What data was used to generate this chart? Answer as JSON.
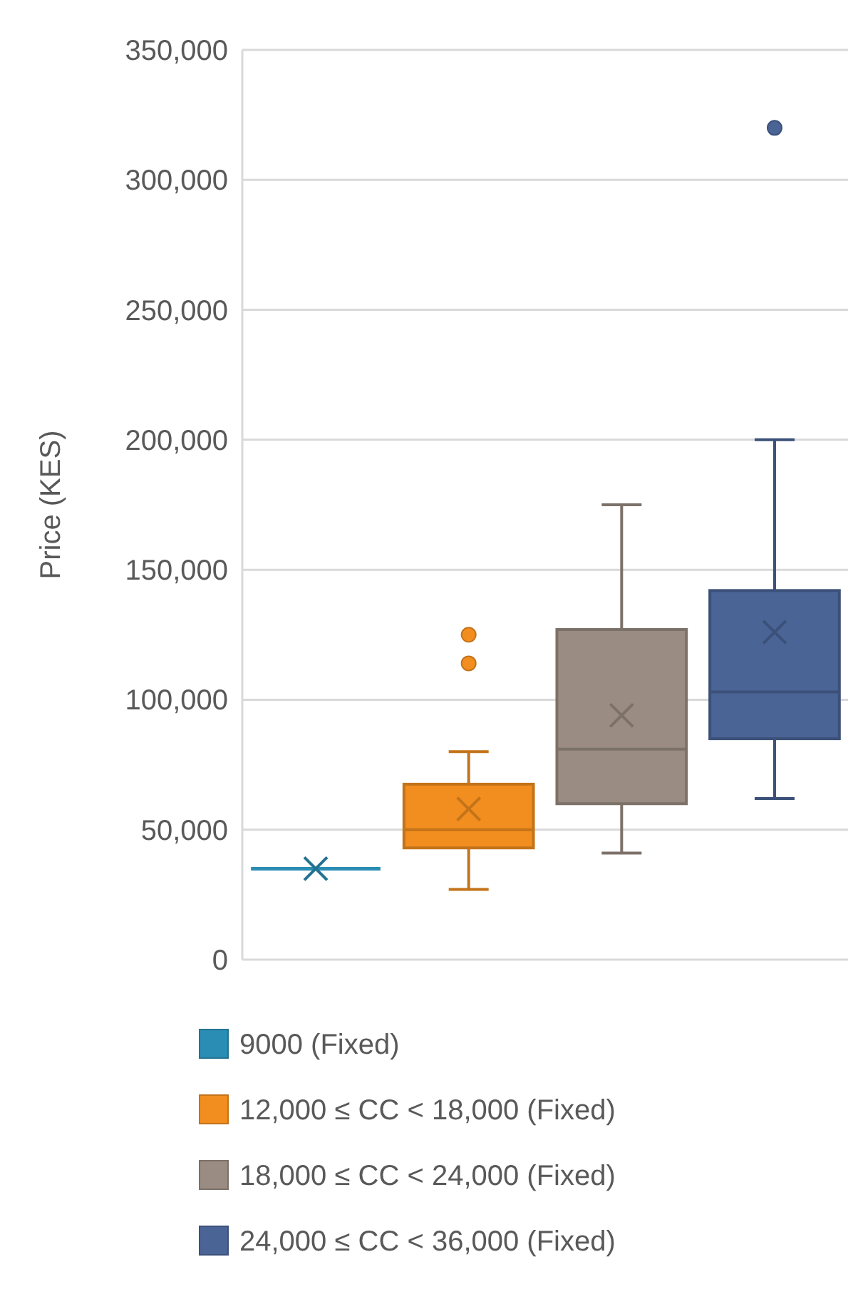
{
  "chart_data": {
    "type": "box",
    "ylabel": "Price (KES)",
    "categories": [
      null,
      null,
      null,
      null
    ],
    "ylim": [
      0,
      350000
    ],
    "yticks": [
      {
        "value": 0,
        "label": "0"
      },
      {
        "value": 50000,
        "label": "50,000"
      },
      {
        "value": 100000,
        "label": "100,000"
      },
      {
        "value": 150000,
        "label": "150,000"
      },
      {
        "value": 200000,
        "label": "200,000"
      },
      {
        "value": 250000,
        "label": "250,000"
      },
      {
        "value": 300000,
        "label": "300,000"
      },
      {
        "value": 350000,
        "label": "350,000"
      }
    ],
    "grid": "y",
    "legend": "bottom",
    "marker": "cross",
    "series": [
      {
        "name": "9000 (Fixed)",
        "color": "#2a8db3",
        "boxes": [
          {
            "low": 35000,
            "q1": 35000,
            "median": 35000,
            "q3": 35000,
            "high": 35000,
            "mean": 35000
          },
          null,
          null,
          null
        ]
      },
      {
        "name": "12,000 ≤ CC < 18,000 (Fixed)",
        "color": "#f28e1f",
        "boxes": [
          null,
          {
            "low": 27000,
            "q1": 43000,
            "median": 50000,
            "q3": 67500,
            "high": 80000,
            "mean": 58000,
            "outliers": [
              114000,
              125000
            ]
          },
          null,
          null
        ]
      },
      {
        "name": "18,000 ≤ CC < 24,000 (Fixed)",
        "color": "#9a8c82",
        "boxes": [
          null,
          null,
          {
            "low": 41000,
            "q1": 60000,
            "median": 81000,
            "q3": 127000,
            "high": 175000,
            "mean": 94000
          },
          null
        ]
      },
      {
        "name": "24,000 ≤ CC < 36,000 (Fixed)",
        "color": "#4a6496",
        "boxes": [
          null,
          null,
          null,
          {
            "low": 62000,
            "q1": 85000,
            "median": 103000,
            "q3": 142000,
            "high": 200000,
            "mean": 126000,
            "outliers": [
              320000
            ]
          }
        ]
      }
    ]
  }
}
